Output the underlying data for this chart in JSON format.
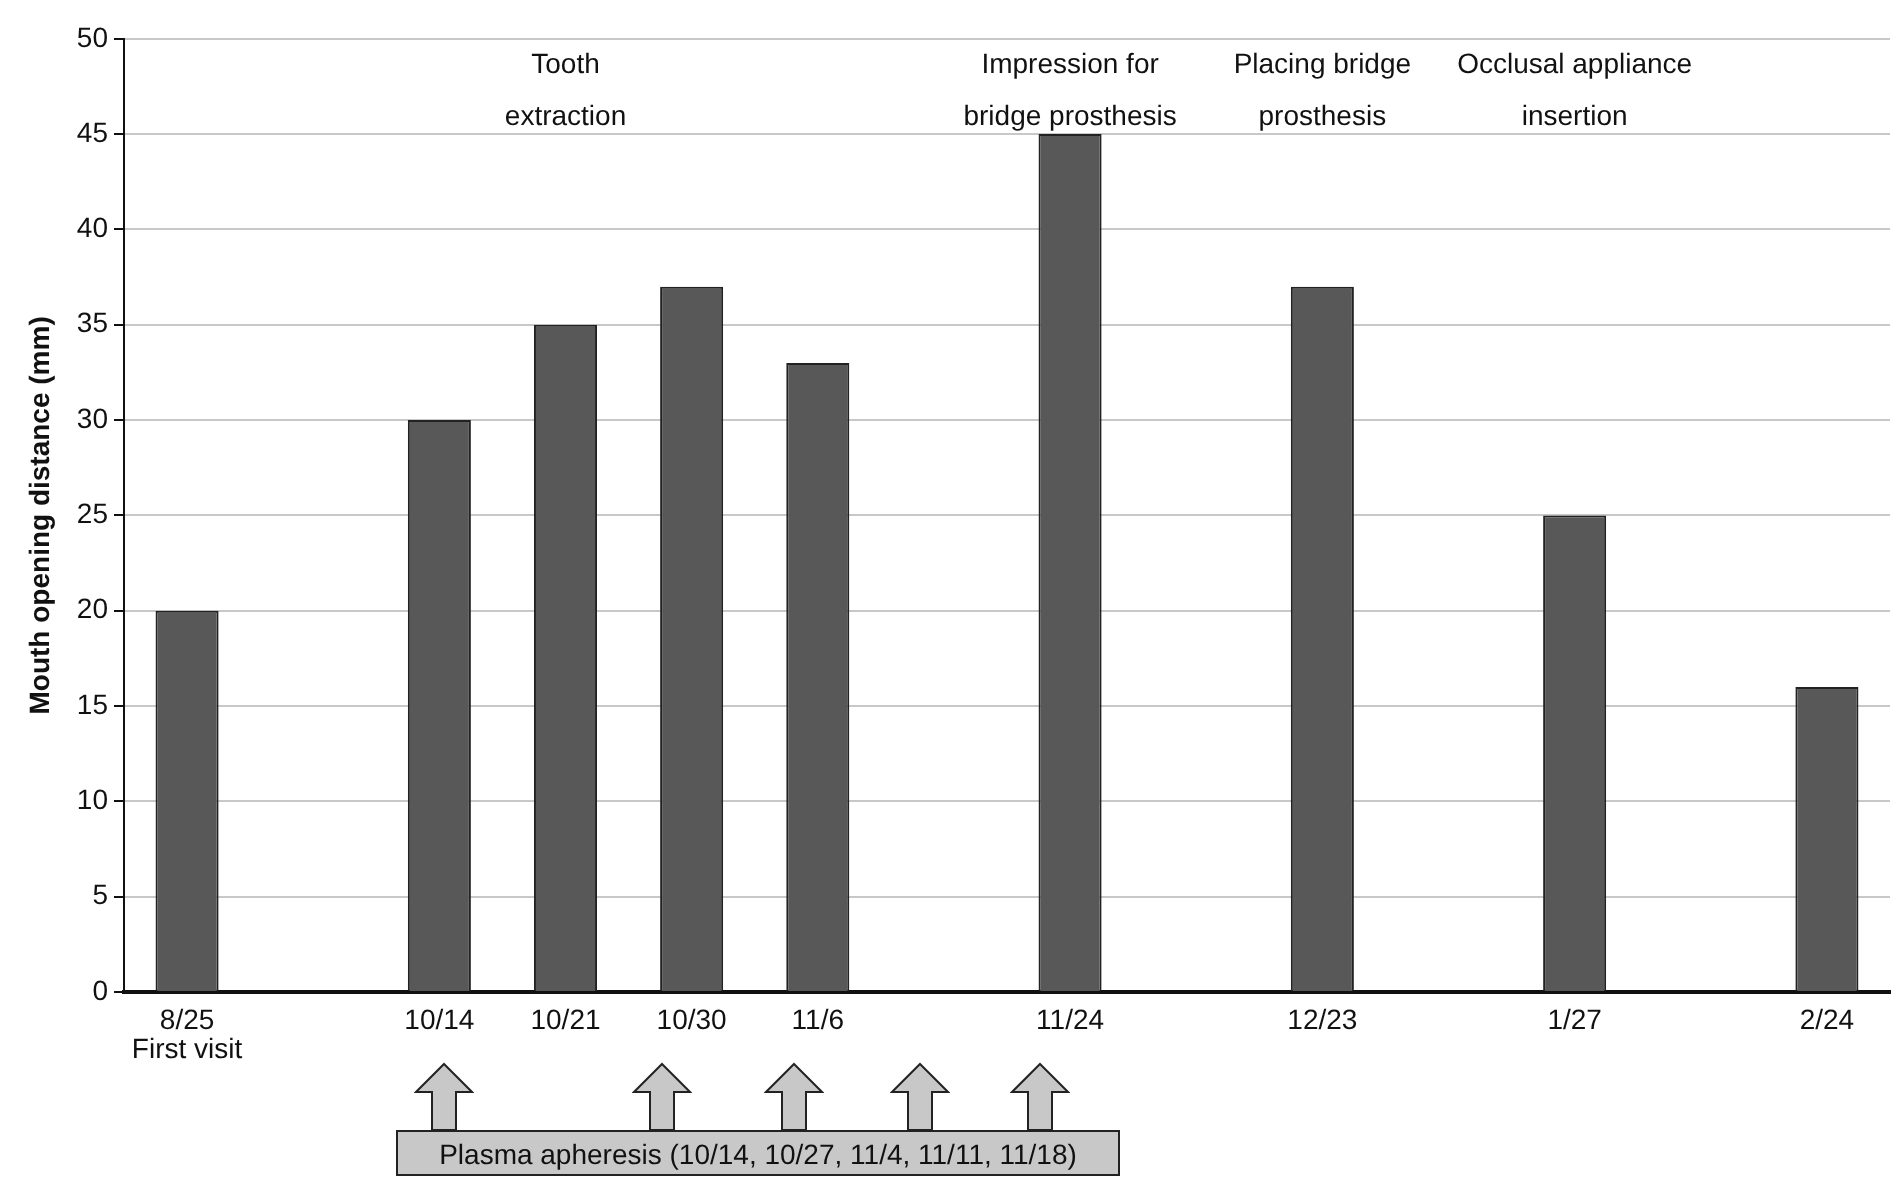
{
  "chart_data": {
    "type": "bar",
    "ylabel": "Mouth opening distance (mm)",
    "categories": [
      "8/25",
      null,
      "10/14",
      "10/21",
      "10/30",
      "11/6",
      null,
      "11/24",
      null,
      "12/23",
      null,
      "1/27",
      null,
      "2/24"
    ],
    "values": [
      20,
      null,
      30,
      35,
      37,
      33,
      null,
      45,
      null,
      37,
      null,
      25,
      null,
      16
    ],
    "color": "#585858",
    "ylim": [
      0,
      50
    ],
    "yticks": [
      0,
      5,
      10,
      15,
      20,
      25,
      30,
      35,
      40,
      45,
      50
    ],
    "grid": "y",
    "legend": false,
    "annotations": [
      "First visit",
      "Tooth extraction",
      "Impression for bridge prosthesis",
      "Placing bridge prosthesis",
      "Occlusal appliance insertion",
      "Plasma apheresis (10/14, 10/27, 11/4, 11/11, 11/18)"
    ]
  }
}
